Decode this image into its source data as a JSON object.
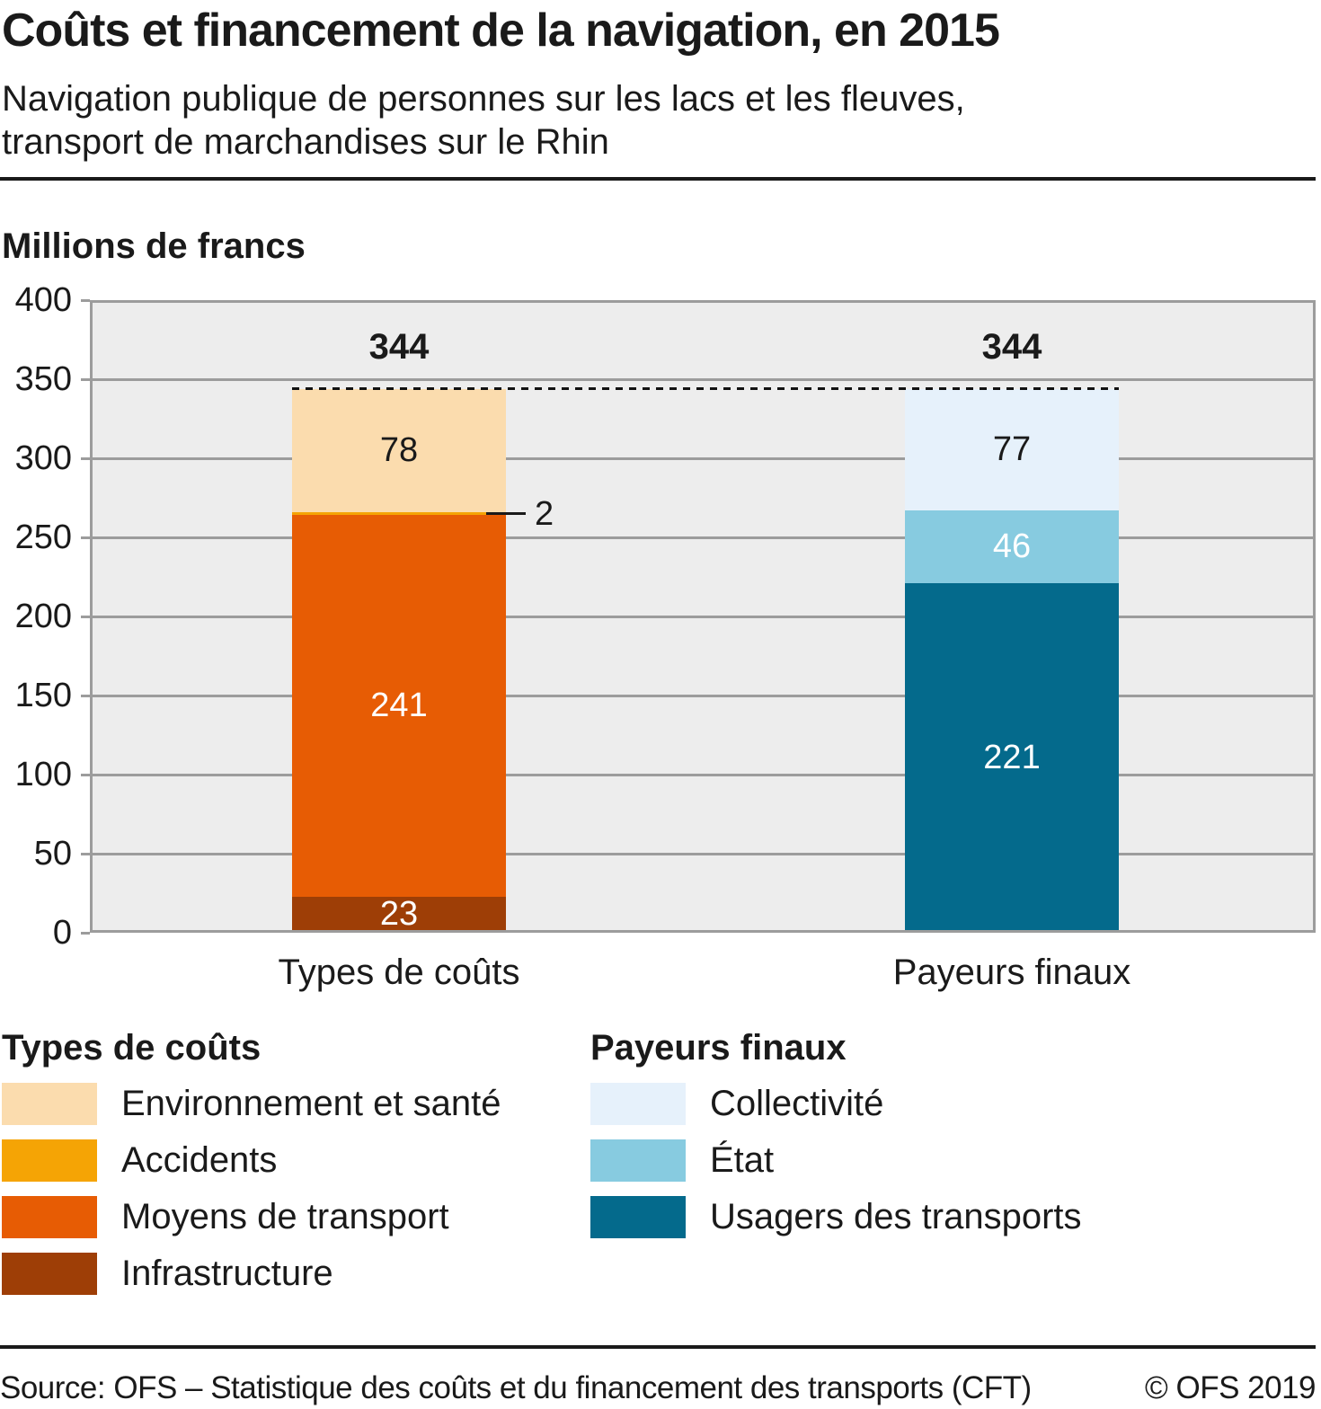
{
  "header": {
    "title": "Coûts et financement de la navigation, en 2015",
    "subtitle_line1": "Navigation publique de personnes sur les lacs et les fleuves,",
    "subtitle_line2": "transport de marchandises sur le Rhin"
  },
  "chart_data": {
    "type": "bar",
    "stacked": true,
    "unit_label": "Millions de francs",
    "ylim": [
      0,
      400
    ],
    "yticks": [
      0,
      50,
      100,
      150,
      200,
      250,
      300,
      350,
      400
    ],
    "grid": true,
    "legend_position": "bottom",
    "total_reference": {
      "value": 344,
      "style": "dotted"
    },
    "categories": [
      "Types de coûts",
      "Payeurs finaux"
    ],
    "bars": [
      {
        "category": "Types de coûts",
        "total": 344,
        "segments": [
          {
            "name": "Infrastructure",
            "value": 23,
            "color": "#9e3e06",
            "label_color": "#ffffff",
            "label_placement": "inside"
          },
          {
            "name": "Moyens de transport",
            "value": 241,
            "color": "#e75c04",
            "label_color": "#ffffff",
            "label_placement": "inside"
          },
          {
            "name": "Accidents",
            "value": 2,
            "color": "#f5a405",
            "label_color": "#1a1a1a",
            "label_placement": "callout"
          },
          {
            "name": "Environnement et santé",
            "value": 78,
            "color": "#fbdcae",
            "label_color": "#1a1a1a",
            "label_placement": "inside"
          }
        ]
      },
      {
        "category": "Payeurs finaux",
        "total": 344,
        "segments": [
          {
            "name": "Usagers des transports",
            "value": 221,
            "color": "#046a8c",
            "label_color": "#ffffff",
            "label_placement": "inside"
          },
          {
            "name": "État",
            "value": 46,
            "color": "#87cbe0",
            "label_color": "#ffffff",
            "label_placement": "inside"
          },
          {
            "name": "Collectivité",
            "value": 77,
            "color": "#e6f1fb",
            "label_color": "#1a1a1a",
            "label_placement": "inside"
          }
        ]
      }
    ]
  },
  "legend": {
    "columns": [
      {
        "heading": "Types de coûts",
        "items": [
          {
            "label": "Environnement et santé",
            "color": "#fbdcae"
          },
          {
            "label": "Accidents",
            "color": "#f5a405"
          },
          {
            "label": "Moyens de transport",
            "color": "#e75c04"
          },
          {
            "label": "Infrastructure",
            "color": "#9e3e06"
          }
        ]
      },
      {
        "heading": "Payeurs finaux",
        "items": [
          {
            "label": "Collectivité",
            "color": "#e6f1fb"
          },
          {
            "label": "État",
            "color": "#87cbe0"
          },
          {
            "label": "Usagers des transports",
            "color": "#046a8c"
          }
        ]
      }
    ]
  },
  "footer": {
    "source": "Source: OFS – Statistique des coûts et du financement des transports (CFT)",
    "copyright": "© OFS 2019"
  },
  "colors": {
    "text": "#1a1a1a",
    "plot_background": "#ededed",
    "grid_line": "#9c9c9c",
    "reference_line": "#111111"
  }
}
